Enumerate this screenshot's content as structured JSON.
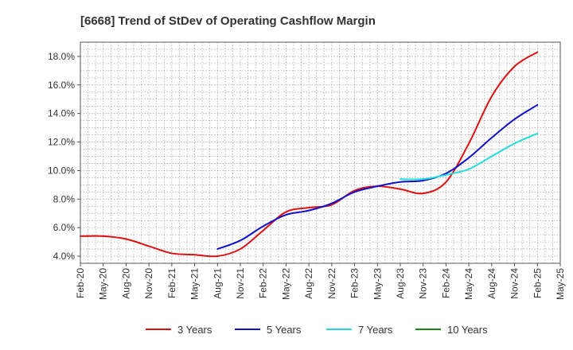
{
  "chart_data": {
    "type": "line",
    "title": "[6668]  Trend of StDev of Operating Cashflow Margin",
    "xlabel": "",
    "ylabel": "",
    "ylim": [
      3.5,
      19.0
    ],
    "yticks": [
      4.0,
      6.0,
      8.0,
      10.0,
      12.0,
      14.0,
      16.0,
      18.0
    ],
    "ytick_labels": [
      "4.0%",
      "6.0%",
      "8.0%",
      "10.0%",
      "12.0%",
      "14.0%",
      "16.0%",
      "18.0%"
    ],
    "x_start": "Feb-20",
    "x_end": "May-25",
    "x_range_months": [
      0,
      63
    ],
    "xtick_labels": [
      "Feb-20",
      "May-20",
      "Aug-20",
      "Nov-20",
      "Feb-21",
      "May-21",
      "Aug-21",
      "Nov-21",
      "Feb-22",
      "May-22",
      "Aug-22",
      "Nov-22",
      "Feb-23",
      "May-23",
      "Aug-23",
      "Nov-23",
      "Feb-24",
      "May-24",
      "Aug-24",
      "Nov-24",
      "Feb-25",
      "May-25"
    ],
    "grid": true,
    "legend_position": "bottom",
    "series": [
      {
        "name": "3 Years",
        "color": "#dd1111",
        "x": [
          0,
          3,
          6,
          9,
          12,
          15,
          18,
          21,
          24,
          27,
          30,
          33,
          36,
          39,
          42,
          45,
          48,
          51,
          54,
          57,
          60
        ],
        "values": [
          5.4,
          5.4,
          5.2,
          4.7,
          4.2,
          4.1,
          4.0,
          4.5,
          5.8,
          7.1,
          7.4,
          7.6,
          8.6,
          8.9,
          8.7,
          8.4,
          9.2,
          11.9,
          15.2,
          17.3,
          18.3
        ]
      },
      {
        "name": "5 Years",
        "color": "#1111cc",
        "x": [
          18,
          21,
          24,
          27,
          30,
          33,
          36,
          39,
          42,
          45,
          48,
          51,
          54,
          57,
          60
        ],
        "values": [
          4.5,
          5.1,
          6.1,
          6.9,
          7.2,
          7.7,
          8.5,
          8.9,
          9.2,
          9.3,
          9.8,
          10.9,
          12.3,
          13.6,
          14.6
        ]
      },
      {
        "name": "7 Years",
        "color": "#22dddd",
        "x": [
          42,
          45,
          48,
          51,
          54,
          57,
          60
        ],
        "values": [
          9.4,
          9.4,
          9.7,
          10.1,
          11.0,
          11.9,
          12.6
        ]
      },
      {
        "name": "10 Years",
        "color": "#118811",
        "x": [],
        "values": []
      }
    ]
  }
}
